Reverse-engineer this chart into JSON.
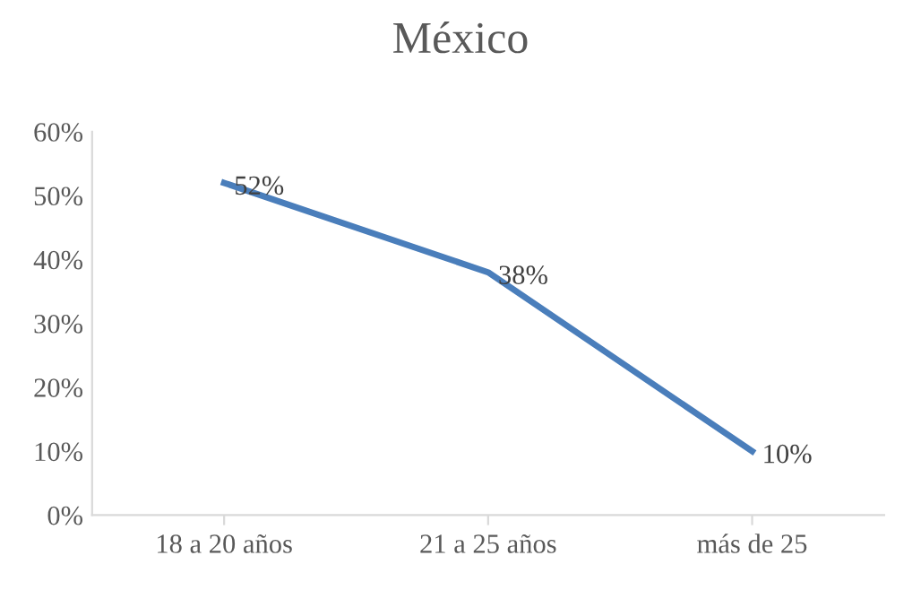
{
  "chart_data": {
    "type": "line",
    "title": "México",
    "categories": [
      "18 a 20 años",
      "21 a 25 años",
      "más de 25"
    ],
    "series": [
      {
        "color": "#4a7ebb",
        "values": [
          52,
          38,
          10
        ],
        "value_labels": [
          "52%",
          "38%",
          "10%"
        ]
      }
    ],
    "ylim": [
      0,
      60
    ],
    "yticks": [
      {
        "value": 0,
        "label": "0%"
      },
      {
        "value": 10,
        "label": "10%"
      },
      {
        "value": 20,
        "label": "20%"
      },
      {
        "value": 30,
        "label": "30%"
      },
      {
        "value": 40,
        "label": "40%"
      },
      {
        "value": 50,
        "label": "50%"
      },
      {
        "value": 60,
        "label": "60%"
      }
    ],
    "grid": false,
    "legend": false,
    "marker": "none",
    "line_style": "solid"
  }
}
